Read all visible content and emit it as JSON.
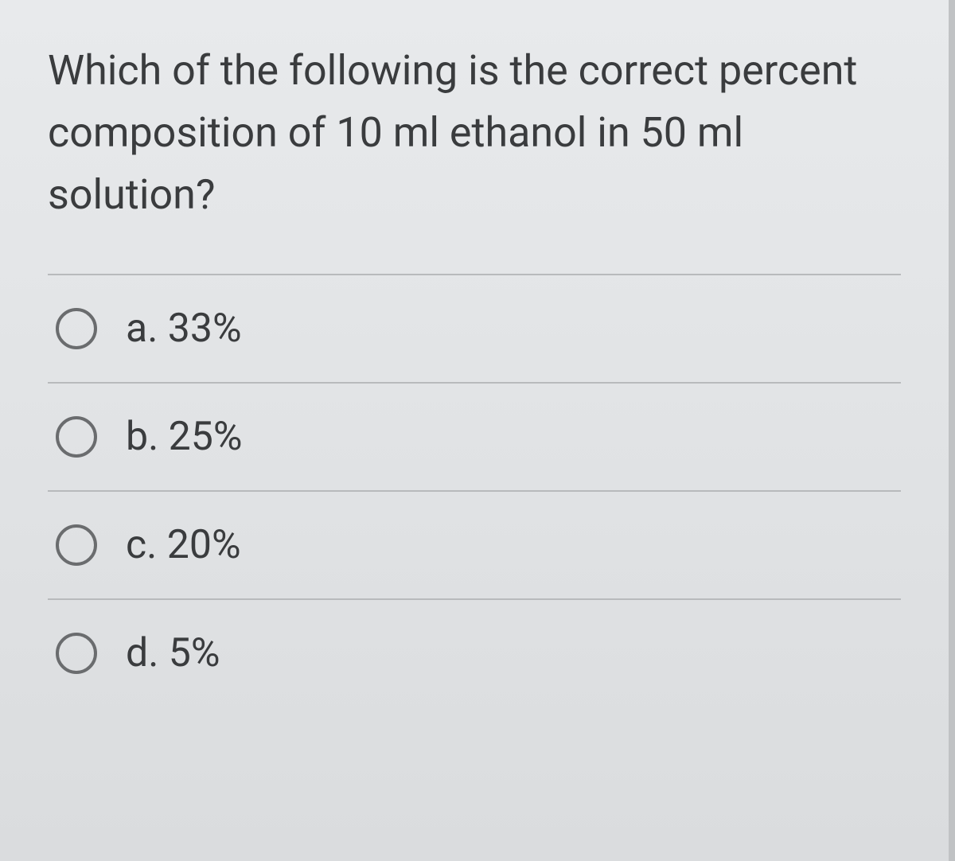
{
  "question": {
    "text": "Which of the following is the correct percent composition of 10 ml ethanol in 50 ml solution?"
  },
  "options": [
    {
      "label": "a. 33%"
    },
    {
      "label": "b. 25%"
    },
    {
      "label": "c. 20%"
    },
    {
      "label": "d. 5%"
    }
  ],
  "colors": {
    "background": "#d8dadb",
    "text": "#3a3c3e",
    "divider": "#b8babc",
    "radio_border": "#6a6c6e"
  },
  "typography": {
    "question_fontsize": 52,
    "option_fontsize": 50,
    "font_family": "system-ui"
  }
}
